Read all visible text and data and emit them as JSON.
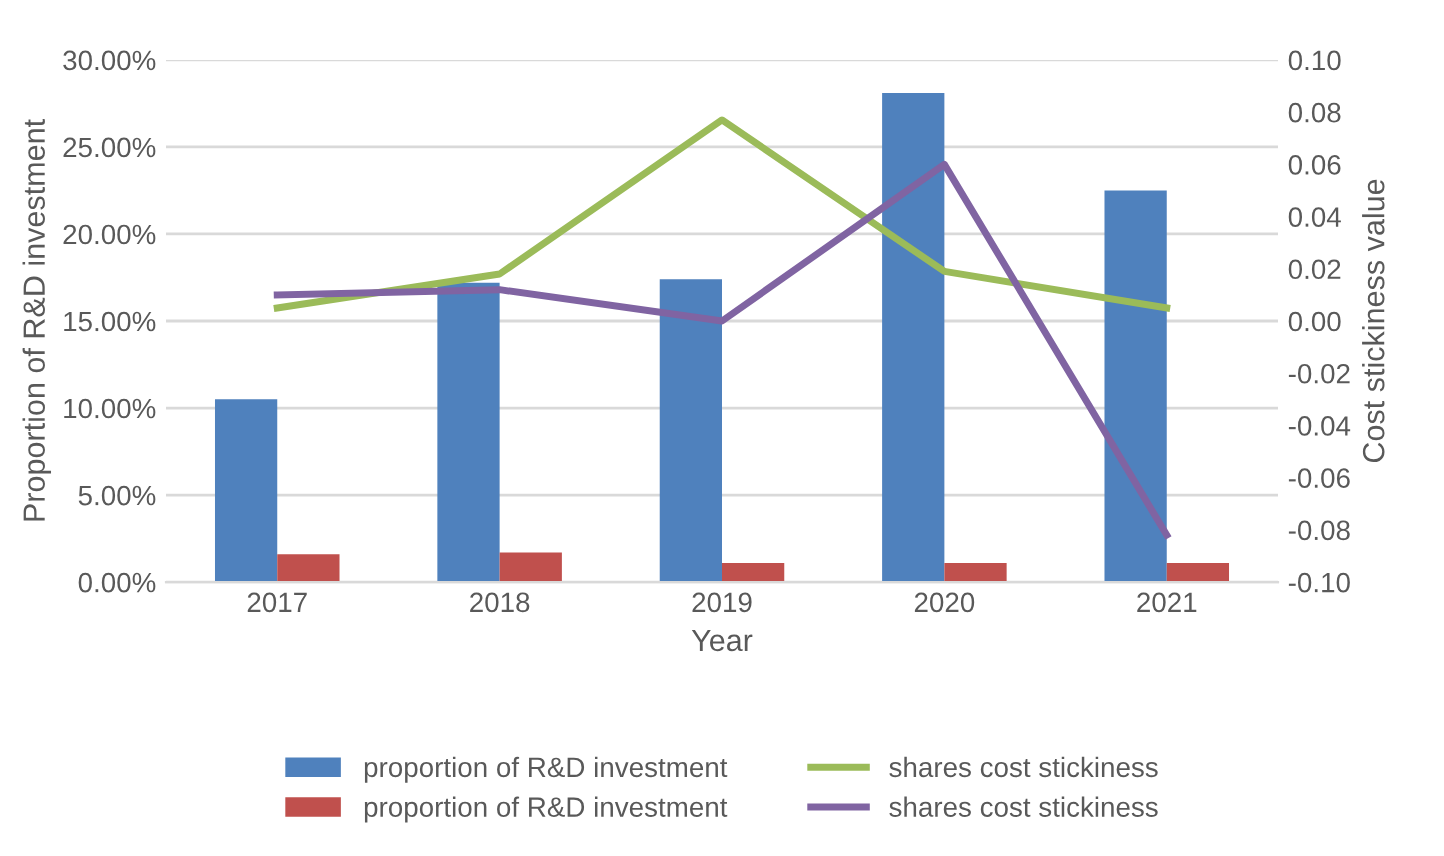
{
  "chart_data": {
    "type": "bar",
    "xlabel": "Year",
    "ylabel": "Proportion of R&D investment",
    "y2label": "Cost stickiness value",
    "categories": [
      "2017",
      "2018",
      "2019",
      "2020",
      "2021"
    ],
    "series": [
      {
        "name": "proportion of R&D investment",
        "color": "#4f81bd",
        "values": [
          10.5,
          17.2,
          17.4,
          28.1,
          22.5
        ]
      },
      {
        "name": "proportion of R&D investment",
        "color": "#c0504d",
        "values": [
          1.6,
          1.7,
          1.1,
          1.1,
          1.1
        ]
      },
      {
        "name": "shares cost stickiness",
        "type": "line",
        "axis": "y2",
        "color": "#9bbb59",
        "values": [
          0.005,
          0.018,
          0.077,
          0.019,
          0.005
        ]
      },
      {
        "name": "shares cost stickiness",
        "type": "line",
        "axis": "y2",
        "color": "#8064a2",
        "values": [
          0.01,
          0.012,
          0.0,
          0.06,
          -0.082
        ]
      }
    ],
    "ylim": [
      0,
      30
    ],
    "yticks": [
      {
        "value": 0,
        "label": "0.00%"
      },
      {
        "value": 5,
        "label": "5.00%"
      },
      {
        "value": 10,
        "label": "10.00%"
      },
      {
        "value": 15,
        "label": "15.00%"
      },
      {
        "value": 20,
        "label": "20.00%"
      },
      {
        "value": 25,
        "label": "25.00%"
      },
      {
        "value": 30,
        "label": "30.00%"
      }
    ],
    "y2lim": [
      -0.1,
      0.1
    ],
    "y2ticks": [
      {
        "value": -0.1,
        "label": "-0.10"
      },
      {
        "value": -0.08,
        "label": "-0.08"
      },
      {
        "value": -0.06,
        "label": "-0.06"
      },
      {
        "value": -0.04,
        "label": "-0.04"
      },
      {
        "value": -0.02,
        "label": "-0.02"
      },
      {
        "value": 0,
        "label": "0.00"
      },
      {
        "value": 0.02,
        "label": "0.02"
      },
      {
        "value": 0.04,
        "label": "0.04"
      },
      {
        "value": 0.06,
        "label": "0.06"
      },
      {
        "value": 0.08,
        "label": "0.08"
      },
      {
        "value": 0.1,
        "label": "0.10"
      }
    ],
    "grid": "y",
    "legend": "bottom",
    "marker": "none",
    "line_style": "solid"
  }
}
